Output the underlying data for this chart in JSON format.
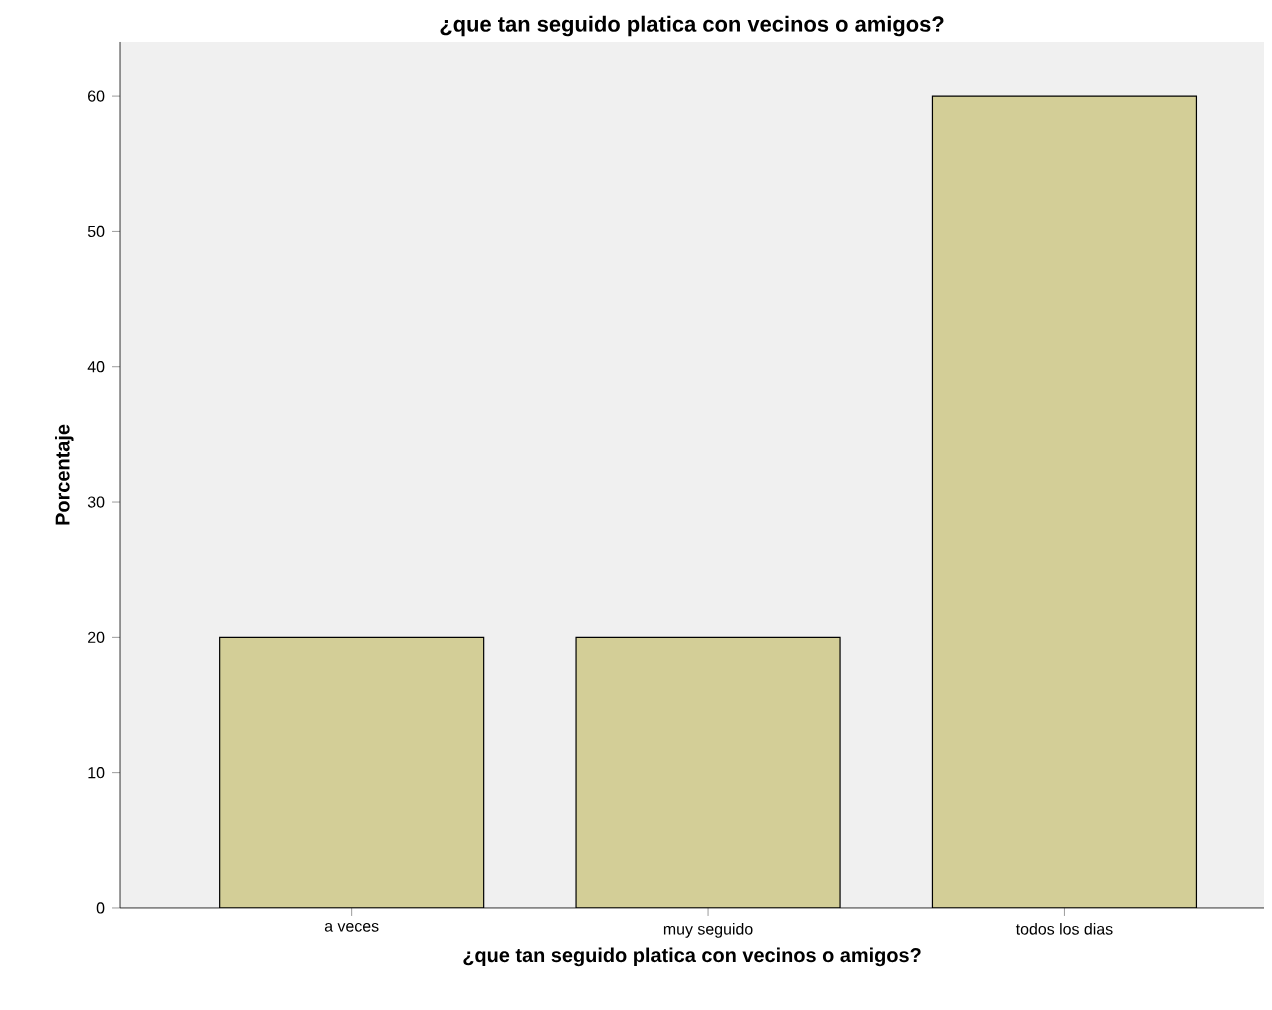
{
  "chart_data": {
    "type": "bar",
    "title": "¿que tan seguido platica con vecinos o amigos?",
    "xlabel": "¿que tan seguido platica con vecinos o amigos?",
    "ylabel": "Porcentaje",
    "categories": [
      "a veces",
      "muy seguido",
      "todos los dias"
    ],
    "values": [
      20,
      20,
      60
    ],
    "color": "#d3ce97",
    "ylim": [
      0,
      64
    ],
    "yticks": [
      0,
      10,
      20,
      30,
      40,
      50,
      60
    ],
    "grid": false
  }
}
